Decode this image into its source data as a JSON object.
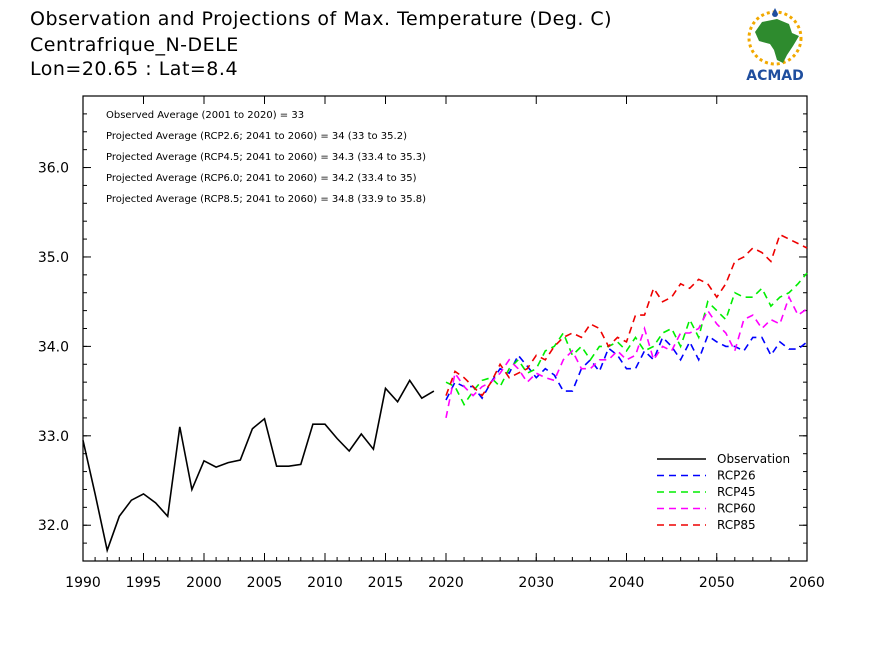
{
  "title": {
    "line1": "Observation and Projections of Max. Temperature (Deg. C)",
    "line2": "Centrafrique_N-DELE",
    "line3": "Lon=20.65 : Lat=8.4"
  },
  "logo": {
    "text": "ACMAD",
    "colors": {
      "africa": "#2e8b2e",
      "ring": "#f2a900",
      "text": "#1f4e9e"
    }
  },
  "annotations": [
    "Observed Average (2001 to 2020) = 33",
    "Projected Average (RCP2.6; 2041 to 2060) = 34 (33 to 35.2)",
    "Projected Average (RCP4.5; 2041 to 2060) = 34.3 (33.4 to 35.3)",
    "Projected Average (RCP6.0; 2041 to 2060) = 34.2 (33.4 to 35)",
    "Projected Average (RCP8.5; 2041 to 2060) = 34.8 (33.9 to 35.8)"
  ],
  "chart_data": {
    "type": "line",
    "ylim": [
      31.6,
      36.8
    ],
    "yticks": [
      32.0,
      33.0,
      34.0,
      35.0,
      36.0
    ],
    "ytick_labels": [
      "32.0",
      "33.0",
      "34.0",
      "35.0",
      "36.0"
    ],
    "xticks_left": [
      1990,
      1995,
      2000,
      2005,
      2010,
      2015,
      2020
    ],
    "xticks_right": [
      2020,
      2030,
      2040,
      2050,
      2060
    ],
    "xtick_labels": [
      "1990",
      "1995",
      "2000",
      "2005",
      "2010",
      "2015",
      "2020",
      "2030",
      "2040",
      "2050",
      "2060"
    ],
    "legend_position": "bottom-right",
    "series": [
      {
        "name": "Observation",
        "color": "#000000",
        "dashed": false,
        "x": [
          1990,
          1991,
          1992,
          1993,
          1994,
          1995,
          1996,
          1997,
          1998,
          1999,
          2000,
          2001,
          2002,
          2003,
          2004,
          2005,
          2006,
          2007,
          2008,
          2009,
          2010,
          2011,
          2012,
          2013,
          2014,
          2015,
          2016,
          2017,
          2018,
          2019
        ],
        "y": [
          32.95,
          32.35,
          31.72,
          32.1,
          32.28,
          32.35,
          32.25,
          32.1,
          33.1,
          32.4,
          32.72,
          32.65,
          32.7,
          32.73,
          33.08,
          33.19,
          32.66,
          32.66,
          32.68,
          33.13,
          33.13,
          32.97,
          32.83,
          33.02,
          32.85,
          33.53,
          33.38,
          33.62,
          33.42,
          33.5
        ]
      },
      {
        "name": "RCP26",
        "color": "#0000ff",
        "dashed": true,
        "x": [
          2020,
          2021,
          2022,
          2023,
          2024,
          2025,
          2026,
          2027,
          2028,
          2029,
          2030,
          2031,
          2032,
          2033,
          2034,
          2035,
          2036,
          2037,
          2038,
          2039,
          2040,
          2041,
          2042,
          2043,
          2044,
          2045,
          2046,
          2047,
          2048,
          2049,
          2050,
          2051,
          2052,
          2053,
          2054,
          2055,
          2056,
          2057,
          2058,
          2059,
          2060
        ],
        "y": [
          33.4,
          33.6,
          33.55,
          33.55,
          33.42,
          33.6,
          33.75,
          33.7,
          33.9,
          33.78,
          33.65,
          33.75,
          33.68,
          33.5,
          33.5,
          33.75,
          33.85,
          33.72,
          33.98,
          33.9,
          33.75,
          33.75,
          33.95,
          33.85,
          34.1,
          34.0,
          33.85,
          34.05,
          33.85,
          34.12,
          34.05,
          34.0,
          34.0,
          33.95,
          34.1,
          34.1,
          33.9,
          34.05,
          33.97,
          33.97,
          34.05
        ]
      },
      {
        "name": "RCP45",
        "color": "#00ee00",
        "dashed": true,
        "x": [
          2020,
          2021,
          2022,
          2023,
          2024,
          2025,
          2026,
          2027,
          2028,
          2029,
          2030,
          2031,
          2032,
          2033,
          2034,
          2035,
          2036,
          2037,
          2038,
          2039,
          2040,
          2041,
          2042,
          2043,
          2044,
          2045,
          2046,
          2047,
          2048,
          2049,
          2050,
          2051,
          2052,
          2053,
          2054,
          2055,
          2056,
          2057,
          2058,
          2059,
          2060
        ],
        "y": [
          33.6,
          33.55,
          33.35,
          33.5,
          33.62,
          33.65,
          33.55,
          33.75,
          33.85,
          33.7,
          33.75,
          33.95,
          34.0,
          34.15,
          33.9,
          34.0,
          33.85,
          34.0,
          34.0,
          34.05,
          33.95,
          34.1,
          33.95,
          34.0,
          34.15,
          34.2,
          34.0,
          34.3,
          34.1,
          34.5,
          34.4,
          34.3,
          34.6,
          34.55,
          34.55,
          34.65,
          34.45,
          34.55,
          34.6,
          34.7,
          34.82
        ]
      },
      {
        "name": "RCP60",
        "color": "#ff00ff",
        "dashed": true,
        "x": [
          2020,
          2021,
          2022,
          2023,
          2024,
          2025,
          2026,
          2027,
          2028,
          2029,
          2030,
          2031,
          2032,
          2033,
          2034,
          2035,
          2036,
          2037,
          2038,
          2039,
          2040,
          2041,
          2042,
          2043,
          2044,
          2045,
          2046,
          2047,
          2048,
          2049,
          2050,
          2051,
          2052,
          2053,
          2054,
          2055,
          2056,
          2057,
          2058,
          2059,
          2060
        ],
        "y": [
          33.2,
          33.7,
          33.55,
          33.45,
          33.55,
          33.6,
          33.7,
          33.85,
          33.75,
          33.6,
          33.7,
          33.65,
          33.62,
          33.85,
          33.95,
          33.75,
          33.75,
          33.85,
          33.85,
          33.95,
          33.85,
          33.9,
          34.2,
          33.85,
          34.0,
          33.95,
          34.15,
          34.15,
          34.2,
          34.4,
          34.25,
          34.15,
          33.95,
          34.3,
          34.35,
          34.2,
          34.3,
          34.25,
          34.55,
          34.35,
          34.42
        ]
      },
      {
        "name": "RCP85",
        "color": "#ee0000",
        "dashed": true,
        "x": [
          2020,
          2021,
          2022,
          2023,
          2024,
          2025,
          2026,
          2027,
          2028,
          2029,
          2030,
          2031,
          2032,
          2033,
          2034,
          2035,
          2036,
          2037,
          2038,
          2039,
          2040,
          2041,
          2042,
          2043,
          2044,
          2045,
          2046,
          2047,
          2048,
          2049,
          2050,
          2051,
          2052,
          2053,
          2054,
          2055,
          2056,
          2057,
          2058,
          2059,
          2060
        ],
        "y": [
          33.45,
          33.72,
          33.65,
          33.55,
          33.45,
          33.6,
          33.8,
          33.65,
          33.7,
          33.75,
          33.9,
          33.85,
          34.0,
          34.1,
          34.15,
          34.1,
          34.25,
          34.2,
          34.0,
          34.1,
          34.05,
          34.35,
          34.35,
          34.65,
          34.5,
          34.55,
          34.7,
          34.65,
          34.75,
          34.7,
          34.55,
          34.7,
          34.95,
          35.0,
          35.1,
          35.05,
          34.95,
          35.25,
          35.2,
          35.15,
          35.1
        ]
      }
    ]
  }
}
